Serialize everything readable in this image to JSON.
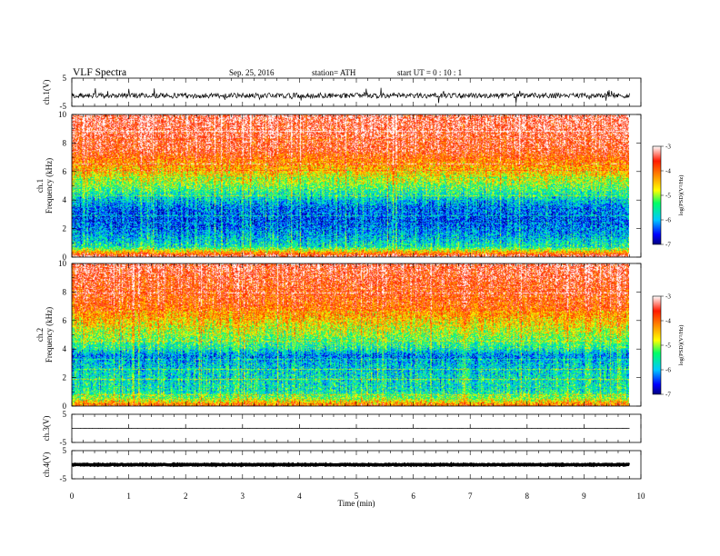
{
  "header": {
    "title": "VLF  Spectra",
    "date": "Sep. 25, 2016",
    "station": "station= ATH",
    "start_ut": "start  UT  =    0  : 10 : 1"
  },
  "chart_data": [
    {
      "type": "line",
      "panel": "ch1-waveform",
      "ylabel": "ch.1(V)",
      "ytick_labels": [
        "5",
        "-5"
      ],
      "ylim": [
        -5,
        5
      ],
      "xlim": [
        0,
        10
      ],
      "data_end_min": 9.8,
      "series": [
        {
          "baseline": -1.2,
          "spread": 1.8,
          "color": "#000000"
        }
      ]
    },
    {
      "type": "heatmap",
      "panel": "ch1-spectrogram",
      "ylabel": "ch.1\nFrequency  (kHz)",
      "ylabel_lines": [
        "ch.1",
        "Frequency  (kHz)"
      ],
      "ytick_labels": [
        "0",
        "2",
        "4",
        "6",
        "8",
        "10"
      ],
      "ylim": [
        0,
        10
      ],
      "xlim": [
        0,
        10
      ],
      "data_end_min": 9.8,
      "colorbar": {
        "label": "log(PSD)(V²/Hz)",
        "range": [
          -7,
          -3
        ],
        "ticks": [
          "-3",
          "-4",
          "-5",
          "-6",
          "-7"
        ]
      },
      "profile_logpsd": [
        {
          "f_khz": 0.0,
          "v": -3.2
        },
        {
          "f_khz": 0.3,
          "v": -4.3
        },
        {
          "f_khz": 0.7,
          "v": -5.6
        },
        {
          "f_khz": 1.5,
          "v": -6.0
        },
        {
          "f_khz": 2.5,
          "v": -6.4
        },
        {
          "f_khz": 3.5,
          "v": -6.2
        },
        {
          "f_khz": 4.5,
          "v": -5.5
        },
        {
          "f_khz": 5.5,
          "v": -4.8
        },
        {
          "f_khz": 6.5,
          "v": -4.2
        },
        {
          "f_khz": 7.5,
          "v": -3.6
        },
        {
          "f_khz": 10.0,
          "v": -3.3
        }
      ]
    },
    {
      "type": "heatmap",
      "panel": "ch2-spectrogram",
      "ylabel": "ch.2\nFrequency  (kHz)",
      "ylabel_lines": [
        "ch.2",
        "Frequency  (kHz)"
      ],
      "ytick_labels": [
        "0",
        "2",
        "4",
        "6",
        "8",
        "10"
      ],
      "ylim": [
        0,
        10
      ],
      "xlim": [
        0,
        10
      ],
      "data_end_min": 9.8,
      "colorbar": {
        "label": "log(PSD)(V²/Hz)",
        "range": [
          -7,
          -3
        ],
        "ticks": [
          "-3",
          "-4",
          "-5",
          "-6",
          "-7"
        ]
      },
      "profile_logpsd": [
        {
          "f_khz": 0.0,
          "v": -4.0
        },
        {
          "f_khz": 0.5,
          "v": -5.0
        },
        {
          "f_khz": 1.0,
          "v": -5.6
        },
        {
          "f_khz": 2.0,
          "v": -5.7
        },
        {
          "f_khz": 3.0,
          "v": -5.9
        },
        {
          "f_khz": 3.5,
          "v": -6.2
        },
        {
          "f_khz": 4.0,
          "v": -5.6
        },
        {
          "f_khz": 5.0,
          "v": -5.0
        },
        {
          "f_khz": 6.0,
          "v": -4.5
        },
        {
          "f_khz": 7.0,
          "v": -3.9
        },
        {
          "f_khz": 10.0,
          "v": -3.4
        }
      ]
    },
    {
      "type": "line",
      "panel": "ch3-waveform",
      "ylabel": "ch.3(V)",
      "ytick_labels": [
        "5",
        "-5"
      ],
      "ylim": [
        -5,
        5
      ],
      "xlim": [
        0,
        10
      ],
      "data_end_min": 9.8,
      "series": [
        {
          "baseline": 0.0,
          "spread": 0.05,
          "color": "#000000"
        }
      ]
    },
    {
      "type": "line",
      "panel": "ch4-waveform",
      "ylabel": "ch.4(V)",
      "ytick_labels": [
        "5",
        "-5"
      ],
      "ylim": [
        -5,
        5
      ],
      "xlim": [
        0,
        10
      ],
      "data_end_min": 9.8,
      "series": [
        {
          "baseline": 0.0,
          "spread": 0.3,
          "color": "#000000",
          "thick": true
        }
      ]
    }
  ],
  "xaxis": {
    "label": "Time  (min)",
    "tick_labels": [
      "0",
      "1",
      "2",
      "3",
      "4",
      "5",
      "6",
      "7",
      "8",
      "9",
      "10"
    ],
    "range": [
      0,
      10
    ]
  },
  "colormap_stops": [
    "#00007f",
    "#0000ff",
    "#00c8ff",
    "#00ff66",
    "#ffff00",
    "#ff8c00",
    "#ff1a00",
    "#ffffff"
  ]
}
